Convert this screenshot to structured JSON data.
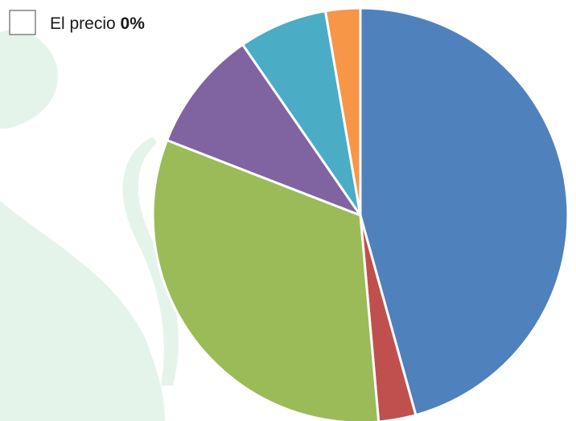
{
  "chart_data": {
    "type": "pie",
    "legend": {
      "label": "El precio",
      "value": "0%"
    },
    "values": [
      45.7,
      2.9,
      32.3,
      9.5,
      6.9,
      2.7
    ],
    "colors": [
      "#4f81bd",
      "#c0504d",
      "#9bbb59",
      "#8064a2",
      "#4bacc6",
      "#f79646"
    ],
    "start_angle": 0,
    "direction": "clockwise"
  }
}
